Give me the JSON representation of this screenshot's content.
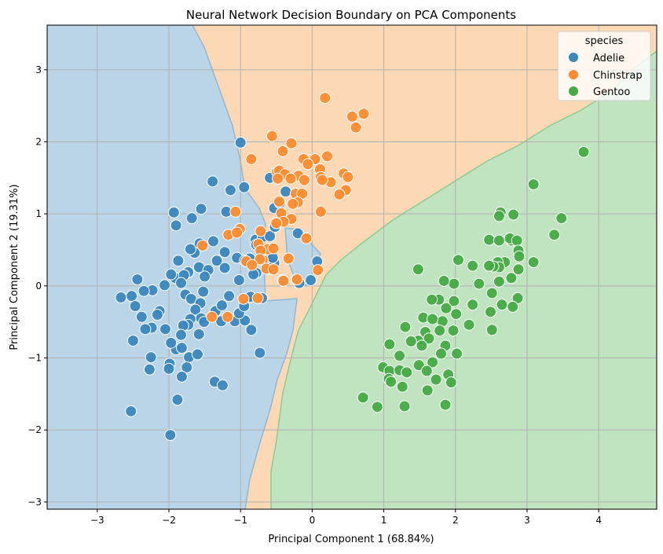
{
  "chart_data": {
    "type": "scatter",
    "title": "Neural Network Decision Boundary on PCA Components",
    "xlabel": "Principal Component 1 (68.84%)",
    "ylabel": "Principal Component 2 (19.31%)",
    "xlim": [
      -3.7,
      4.81
    ],
    "ylim": [
      -3.1,
      3.62
    ],
    "xticks": [
      -3,
      -2,
      -1,
      0,
      1,
      2,
      3,
      4
    ],
    "yticks": [
      -3,
      -2,
      -1,
      0,
      1,
      2,
      3
    ],
    "grid": true,
    "legend": {
      "title": "species",
      "placement": "top-right"
    },
    "decision_regions": true,
    "colors": {
      "Adelie": "#3a87bf",
      "Chinstrap": "#ff8c2e",
      "Gentoo": "#44ab44",
      "region_Adelie": "#bad5e8",
      "region_Chinstrap": "#fdd8b5",
      "region_Gentoo": "#c0e3c0"
    },
    "series": [
      {
        "name": "Adelie",
        "points": [
          [
            -1.0,
            1.99
          ],
          [
            -1.39,
            1.45
          ],
          [
            -1.14,
            1.33
          ],
          [
            -1.68,
            0.94
          ],
          [
            -1.93,
            1.02
          ],
          [
            -1.9,
            0.84
          ],
          [
            -1.55,
            1.07
          ],
          [
            -0.95,
            1.37
          ],
          [
            -0.59,
            1.5
          ],
          [
            -0.37,
            1.31
          ],
          [
            -1.2,
            1.03
          ],
          [
            -0.79,
            0.64
          ],
          [
            -0.69,
            0.68
          ],
          [
            -0.59,
            0.69
          ],
          [
            -0.78,
            0.57
          ],
          [
            -0.52,
            0.82
          ],
          [
            -0.53,
            1.08
          ],
          [
            -0.45,
            1.15
          ],
          [
            -0.2,
            0.73
          ],
          [
            0.07,
            0.34
          ],
          [
            -1.38,
            0.62
          ],
          [
            -1.57,
            0.59
          ],
          [
            -1.64,
            0.46
          ],
          [
            -1.7,
            0.51
          ],
          [
            -1.58,
            0.26
          ],
          [
            -1.73,
            0.19
          ],
          [
            -1.87,
            0.35
          ],
          [
            -1.91,
            0.11
          ],
          [
            -1.97,
            0.16
          ],
          [
            -2.06,
            0.01
          ],
          [
            -2.23,
            -0.06
          ],
          [
            -2.35,
            -0.07
          ],
          [
            -2.52,
            -0.14
          ],
          [
            -2.67,
            -0.16
          ],
          [
            -2.44,
            0.09
          ],
          [
            -1.79,
            0.15
          ],
          [
            -1.83,
            0.04
          ],
          [
            -1.77,
            -0.12
          ],
          [
            -1.69,
            -0.18
          ],
          [
            -1.56,
            -0.24
          ],
          [
            -1.52,
            -0.08
          ],
          [
            -1.63,
            -0.33
          ],
          [
            -1.55,
            -0.45
          ],
          [
            -1.7,
            -0.46
          ],
          [
            -1.73,
            -0.54
          ],
          [
            -1.8,
            -0.55
          ],
          [
            -1.83,
            -0.68
          ],
          [
            -1.9,
            -0.88
          ],
          [
            -2.13,
            -0.35
          ],
          [
            -2.16,
            -0.4
          ],
          [
            -2.05,
            -0.6
          ],
          [
            -2.24,
            -0.58
          ],
          [
            -2.33,
            -0.6
          ],
          [
            -2.38,
            -0.43
          ],
          [
            -2.47,
            -0.28
          ],
          [
            -2.5,
            -0.76
          ],
          [
            -2.25,
            -0.99
          ],
          [
            -2.27,
            -1.16
          ],
          [
            -1.99,
            -1.08
          ],
          [
            -2.0,
            -1.15
          ],
          [
            -1.97,
            -0.79
          ],
          [
            -1.82,
            -0.86
          ],
          [
            -1.72,
            -0.99
          ],
          [
            -1.75,
            -1.13
          ],
          [
            -1.6,
            -0.95
          ],
          [
            -1.58,
            -0.67
          ],
          [
            -1.51,
            -0.5
          ],
          [
            -1.35,
            -0.35
          ],
          [
            -1.27,
            -0.49
          ],
          [
            -1.26,
            -0.27
          ],
          [
            -1.08,
            -0.49
          ],
          [
            -0.94,
            -0.48
          ],
          [
            -0.85,
            -0.61
          ],
          [
            -1.02,
            -0.38
          ],
          [
            -1.36,
            -1.33
          ],
          [
            -1.25,
            -1.38
          ],
          [
            -1.82,
            -1.26
          ],
          [
            -1.88,
            -1.58
          ],
          [
            -2.53,
            -1.74
          ],
          [
            -1.98,
            -2.07
          ],
          [
            -0.73,
            -0.93
          ],
          [
            -0.95,
            -0.28
          ],
          [
            -1.16,
            -0.14
          ],
          [
            -0.86,
            -0.15
          ],
          [
            -0.7,
            -0.17
          ],
          [
            -1.02,
            0.08
          ],
          [
            -0.78,
            0.18
          ],
          [
            -0.58,
            0.24
          ],
          [
            -0.61,
            0.36
          ],
          [
            -0.53,
            0.32
          ],
          [
            -0.55,
            0.39
          ],
          [
            -0.87,
            0.38
          ],
          [
            -0.82,
            0.16
          ],
          [
            -1.05,
            0.39
          ],
          [
            -0.94,
            0.35
          ],
          [
            -1.22,
            0.47
          ],
          [
            -1.33,
            0.35
          ],
          [
            -1.22,
            0.25
          ],
          [
            -0.18,
            0.04
          ],
          [
            -0.02,
            0.08
          ],
          [
            -0.22,
            0.09
          ],
          [
            -0.41,
            0.08
          ],
          [
            -1.45,
            0.22
          ],
          [
            -1.5,
            0.13
          ]
        ]
      },
      {
        "name": "Chinstrap",
        "points": [
          [
            0.18,
            2.61
          ],
          [
            0.72,
            2.39
          ],
          [
            0.56,
            2.35
          ],
          [
            0.61,
            2.2
          ],
          [
            -0.56,
            2.08
          ],
          [
            -0.41,
            1.87
          ],
          [
            -0.29,
            1.98
          ],
          [
            -0.85,
            1.76
          ],
          [
            -0.12,
            1.76
          ],
          [
            0.04,
            1.76
          ],
          [
            -0.06,
            1.69
          ],
          [
            0.21,
            1.8
          ],
          [
            0.11,
            1.62
          ],
          [
            0.12,
            1.51
          ],
          [
            -0.49,
            1.58
          ],
          [
            -0.46,
            1.6
          ],
          [
            -0.38,
            1.55
          ],
          [
            -0.19,
            1.53
          ],
          [
            -0.11,
            1.47
          ],
          [
            -0.3,
            1.49
          ],
          [
            -0.48,
            1.49
          ],
          [
            0.26,
            1.44
          ],
          [
            0.44,
            1.56
          ],
          [
            0.5,
            1.51
          ],
          [
            0.47,
            1.33
          ],
          [
            0.38,
            1.27
          ],
          [
            0.14,
            1.47
          ],
          [
            -0.23,
            1.28
          ],
          [
            -0.14,
            1.28
          ],
          [
            -0.46,
            1.17
          ],
          [
            -0.2,
            1.16
          ],
          [
            -0.27,
            1.14
          ],
          [
            -0.43,
            1.01
          ],
          [
            -0.29,
            0.93
          ],
          [
            -0.4,
            0.89
          ],
          [
            -0.5,
            0.87
          ],
          [
            0.12,
            1.03
          ],
          [
            -1.07,
            1.03
          ],
          [
            -0.72,
            0.76
          ],
          [
            -0.08,
            0.66
          ],
          [
            0.08,
            0.22
          ],
          [
            -0.75,
            0.58
          ],
          [
            -0.62,
            0.51
          ],
          [
            -0.54,
            0.52
          ],
          [
            -0.72,
            0.49
          ],
          [
            -0.69,
            0.36
          ],
          [
            -0.73,
            0.37
          ],
          [
            -0.64,
            0.24
          ],
          [
            -0.54,
            0.23
          ],
          [
            -0.4,
            0.07
          ],
          [
            -0.21,
            0.09
          ],
          [
            -1.17,
            0.71
          ],
          [
            -1.01,
            0.79
          ],
          [
            -0.33,
            0.38
          ],
          [
            -0.92,
            0.34
          ],
          [
            -0.84,
            0.29
          ],
          [
            -1.53,
            0.56
          ],
          [
            -0.76,
            -0.17
          ],
          [
            -0.96,
            -0.18
          ],
          [
            -1.4,
            -0.43
          ],
          [
            -1.18,
            -0.43
          ],
          [
            -1.05,
            0.74
          ]
        ]
      },
      {
        "name": "Gentoo",
        "points": [
          [
            3.79,
            1.86
          ],
          [
            3.09,
            1.41
          ],
          [
            3.48,
            0.94
          ],
          [
            3.38,
            0.71
          ],
          [
            2.63,
            1.02
          ],
          [
            2.61,
            0.97
          ],
          [
            2.81,
            0.99
          ],
          [
            2.47,
            0.64
          ],
          [
            2.61,
            0.63
          ],
          [
            2.78,
            0.63
          ],
          [
            2.76,
            0.66
          ],
          [
            2.86,
            0.63
          ],
          [
            2.88,
            0.49
          ],
          [
            2.89,
            0.41
          ],
          [
            3.09,
            0.33
          ],
          [
            2.88,
            0.23
          ],
          [
            2.69,
            0.33
          ],
          [
            2.59,
            0.33
          ],
          [
            2.61,
            0.26
          ],
          [
            2.53,
            0.27
          ],
          [
            2.47,
            0.28
          ],
          [
            2.78,
            0.11
          ],
          [
            2.61,
            0.06
          ],
          [
            2.87,
            -0.17
          ],
          [
            2.8,
            -0.29
          ],
          [
            2.65,
            -0.26
          ],
          [
            2.51,
            -0.1
          ],
          [
            2.49,
            -0.36
          ],
          [
            2.51,
            -0.61
          ],
          [
            2.24,
            -0.26
          ],
          [
            2.24,
            0.28
          ],
          [
            2.04,
            0.36
          ],
          [
            2.33,
            0.03
          ],
          [
            1.98,
            0.03
          ],
          [
            1.84,
            0.07
          ],
          [
            1.48,
            0.23
          ],
          [
            2.19,
            -0.54
          ],
          [
            2.01,
            -0.39
          ],
          [
            1.98,
            -0.21
          ],
          [
            1.77,
            -0.19
          ],
          [
            1.67,
            -0.19
          ],
          [
            1.87,
            -0.31
          ],
          [
            1.82,
            -0.49
          ],
          [
            1.55,
            -0.44
          ],
          [
            1.68,
            -0.46
          ],
          [
            1.48,
            -0.76
          ],
          [
            1.3,
            -0.57
          ],
          [
            1.58,
            -0.64
          ],
          [
            1.63,
            -0.73
          ],
          [
            1.78,
            -0.62
          ],
          [
            1.86,
            -0.83
          ],
          [
            1.97,
            -0.62
          ],
          [
            2.02,
            -0.94
          ],
          [
            1.8,
            -0.94
          ],
          [
            1.53,
            -0.83
          ],
          [
            1.38,
            -0.77
          ],
          [
            1.08,
            -0.81
          ],
          [
            1.22,
            -0.97
          ],
          [
            0.99,
            -1.13
          ],
          [
            1.08,
            -1.18
          ],
          [
            1.22,
            -1.17
          ],
          [
            1.32,
            -1.2
          ],
          [
            1.49,
            -1.1
          ],
          [
            1.68,
            -1.06
          ],
          [
            1.6,
            -1.18
          ],
          [
            1.73,
            -1.3
          ],
          [
            1.9,
            -1.23
          ],
          [
            1.94,
            -1.34
          ],
          [
            1.61,
            -1.45
          ],
          [
            1.26,
            -1.4
          ],
          [
            1.07,
            -1.29
          ],
          [
            0.91,
            -1.68
          ],
          [
            0.71,
            -1.55
          ],
          [
            1.29,
            -1.67
          ],
          [
            1.86,
            -1.65
          ],
          [
            1.1,
            -1.33
          ]
        ]
      }
    ]
  }
}
